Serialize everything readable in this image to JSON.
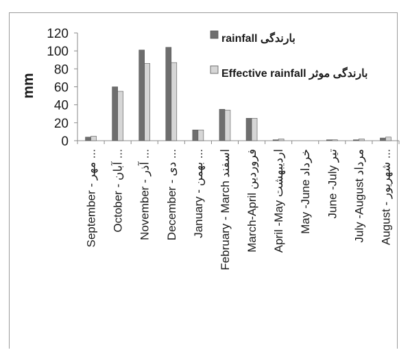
{
  "chart_data": {
    "type": "bar",
    "ylabel": "mm",
    "ylim": [
      0,
      120
    ],
    "yticks": [
      0,
      20,
      40,
      60,
      80,
      100,
      120
    ],
    "grid": false,
    "legend_position": "top-right",
    "categories": [
      "September - مهر ...",
      "October - آبان ...",
      "November - آذر ...",
      "December - دی ...",
      "January - بهمن ...",
      "February - March اسفند",
      "March-April فروردین",
      "April -May اردیبهشت",
      "May -June خرداد",
      "June -July تیر",
      "July -August مرداد",
      "August - شهریور ..."
    ],
    "series": [
      {
        "name": "rainfall بارندگی",
        "color": "#6e6e6e",
        "values": [
          4,
          60,
          101,
          104,
          12,
          35,
          25,
          1,
          0,
          1,
          1,
          3
        ]
      },
      {
        "name": "Effective rainfall بارندگی موثر",
        "color": "#d6d6d6",
        "values": [
          5,
          55,
          86,
          87,
          12,
          34,
          25,
          2,
          0,
          1,
          2,
          4
        ]
      }
    ]
  }
}
